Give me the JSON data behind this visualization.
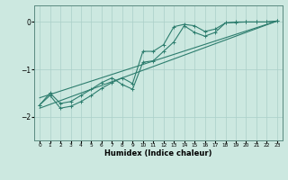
{
  "xlabel": "Humidex (Indice chaleur)",
  "xlim": [
    -0.5,
    23.5
  ],
  "ylim": [
    -2.5,
    0.35
  ],
  "yticks": [
    0,
    -1,
    -2
  ],
  "xticks": [
    0,
    1,
    2,
    3,
    4,
    5,
    6,
    7,
    8,
    9,
    10,
    11,
    12,
    13,
    14,
    15,
    16,
    17,
    18,
    19,
    20,
    21,
    22,
    23
  ],
  "bg_color": "#cce8e0",
  "line_color": "#2d7d6e",
  "grid_color": "#aacfc8",
  "line1_x": [
    0,
    1,
    2,
    3,
    4,
    5,
    6,
    7,
    8,
    9,
    10,
    11,
    12,
    13,
    14,
    15,
    16,
    17,
    18,
    19,
    20,
    21,
    22,
    23
  ],
  "line1_y": [
    -1.75,
    -1.55,
    -1.82,
    -1.78,
    -1.68,
    -1.55,
    -1.4,
    -1.28,
    -1.18,
    -1.3,
    -0.62,
    -0.62,
    -0.48,
    -0.1,
    -0.05,
    -0.08,
    -0.2,
    -0.15,
    -0.02,
    0.0,
    0.0,
    0.0,
    0.0,
    0.02
  ],
  "line2_x": [
    0,
    1,
    2,
    3,
    4,
    5,
    6,
    7,
    8,
    9,
    10,
    11,
    12,
    13,
    14,
    15,
    16,
    17,
    18,
    19,
    20,
    21,
    22,
    23
  ],
  "line2_y": [
    -1.75,
    -1.5,
    -1.72,
    -1.68,
    -1.55,
    -1.42,
    -1.28,
    -1.18,
    -1.32,
    -1.42,
    -0.85,
    -0.82,
    -0.62,
    -0.42,
    -0.08,
    -0.22,
    -0.3,
    -0.22,
    -0.02,
    -0.01,
    0.0,
    0.0,
    0.0,
    0.02
  ],
  "line3_x": [
    0,
    23
  ],
  "line3_y": [
    -1.82,
    0.02
  ],
  "line4_x": [
    0,
    23
  ],
  "line4_y": [
    -1.6,
    0.02
  ]
}
